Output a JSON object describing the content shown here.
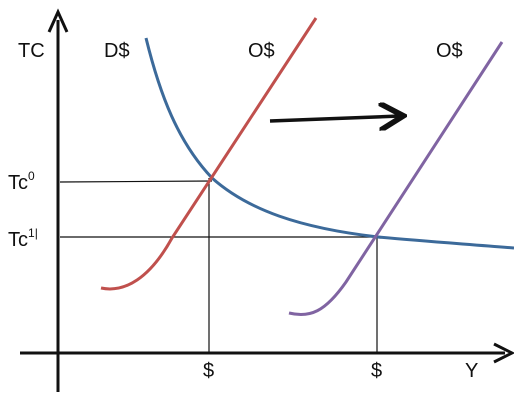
{
  "chart_data": {
    "type": "line",
    "axes": {
      "y_label": "TC",
      "x_label": "Y"
    },
    "curves": {
      "demand": {
        "label": "D$",
        "color": "#3C6A9A"
      },
      "supply_initial": {
        "label": "O$",
        "color": "#C0504D"
      },
      "supply_shifted": {
        "label": "O$",
        "color": "#8064A2"
      }
    },
    "y_ticks": [
      {
        "base": "Tc",
        "sup": "0"
      },
      {
        "base": "Tc",
        "sup": "1",
        "suffix": "|"
      }
    ],
    "x_ticks": [
      "$",
      "$"
    ],
    "shift_arrow": {
      "direction": "right"
    },
    "grid": false,
    "legend": "none"
  }
}
